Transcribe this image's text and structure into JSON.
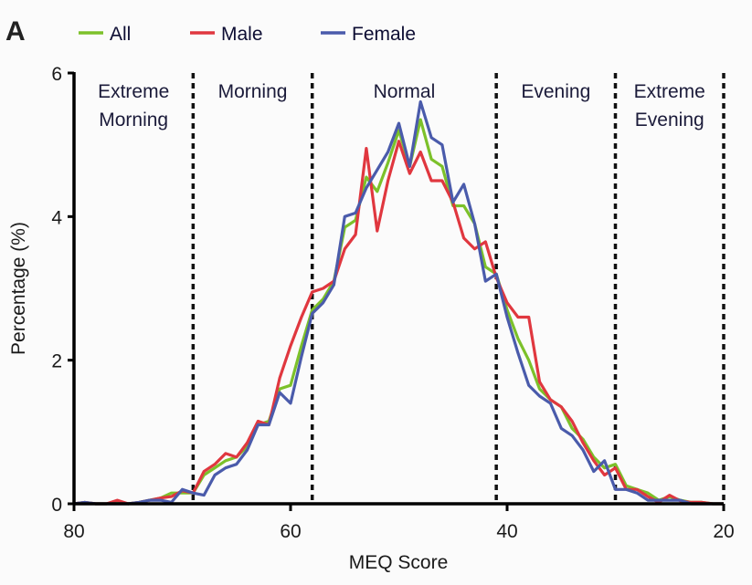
{
  "panel_label": "A",
  "chart_data": {
    "type": "line",
    "title": "",
    "xlabel": "MEQ Score",
    "ylabel": "Percentage (%)",
    "xlim": [
      80,
      20
    ],
    "ylim": [
      0,
      6
    ],
    "x_ticks": [
      80,
      60,
      40,
      20
    ],
    "y_ticks": [
      0,
      2,
      4,
      6
    ],
    "grid": false,
    "legend": {
      "placement": "top",
      "entries": [
        "All",
        "Male",
        "Female"
      ]
    },
    "dividers": [
      69,
      58,
      41,
      30,
      20
    ],
    "zones": [
      {
        "lines": [
          "Extreme",
          "Morning"
        ],
        "center": 74.5
      },
      {
        "lines": [
          "Morning"
        ],
        "center": 63.5
      },
      {
        "lines": [
          "Normal"
        ],
        "center": 49.5
      },
      {
        "lines": [
          "Evening"
        ],
        "center": 35.5
      },
      {
        "lines": [
          "Extreme",
          "Evening"
        ],
        "center": 25
      }
    ],
    "x": [
      80,
      79,
      78,
      77,
      76,
      75,
      74,
      73,
      72,
      71,
      70,
      69,
      68,
      67,
      66,
      65,
      64,
      63,
      62,
      61,
      60,
      59,
      58,
      57,
      56,
      55,
      54,
      53,
      52,
      51,
      50,
      49,
      48,
      47,
      46,
      45,
      44,
      43,
      42,
      41,
      40,
      39,
      38,
      37,
      36,
      35,
      34,
      33,
      32,
      31,
      30,
      29,
      28,
      27,
      26,
      25,
      24,
      23,
      22,
      21,
      20
    ],
    "series": [
      {
        "name": "All",
        "color": "#7cc12a",
        "values": [
          0,
          0.02,
          0,
          0,
          0.02,
          0,
          0.02,
          0.05,
          0.08,
          0.15,
          0.15,
          0.15,
          0.4,
          0.5,
          0.6,
          0.65,
          0.8,
          1.1,
          1.15,
          1.6,
          1.65,
          2.2,
          2.7,
          2.85,
          3.1,
          3.85,
          3.95,
          4.55,
          4.35,
          4.75,
          5.2,
          4.7,
          5.35,
          4.8,
          4.7,
          4.15,
          4.15,
          3.9,
          3.3,
          3.2,
          2.7,
          2.3,
          2.0,
          1.6,
          1.45,
          1.35,
          1.05,
          0.9,
          0.65,
          0.5,
          0.55,
          0.25,
          0.2,
          0.15,
          0.05,
          0.1,
          0.05,
          0.02,
          0.02,
          0,
          0
        ]
      },
      {
        "name": "Male",
        "color": "#e0373f",
        "values": [
          0,
          0.02,
          0,
          0,
          0.05,
          0,
          0.02,
          0.05,
          0.08,
          0.1,
          0.18,
          0.15,
          0.45,
          0.55,
          0.7,
          0.65,
          0.85,
          1.15,
          1.1,
          1.75,
          2.2,
          2.6,
          2.95,
          3.0,
          3.1,
          3.55,
          3.75,
          4.95,
          3.8,
          4.5,
          5.05,
          4.6,
          4.9,
          4.5,
          4.5,
          4.2,
          3.7,
          3.55,
          3.65,
          3.15,
          2.8,
          2.6,
          2.6,
          1.7,
          1.45,
          1.35,
          1.15,
          0.85,
          0.6,
          0.4,
          0.5,
          0.2,
          0.2,
          0.1,
          0.02,
          0.12,
          0.04,
          0.02,
          0.02,
          0,
          0
        ]
      },
      {
        "name": "Female",
        "color": "#4a5bab",
        "values": [
          0,
          0.02,
          0,
          0,
          0,
          0,
          0.02,
          0.05,
          0.05,
          0.02,
          0.2,
          0.15,
          0.12,
          0.4,
          0.5,
          0.55,
          0.75,
          1.1,
          1.1,
          1.55,
          1.4,
          2.05,
          2.65,
          2.8,
          3.05,
          4.0,
          4.05,
          4.4,
          4.65,
          4.9,
          5.3,
          4.7,
          5.6,
          5.1,
          5.0,
          4.2,
          4.45,
          3.9,
          3.1,
          3.2,
          2.6,
          2.1,
          1.65,
          1.5,
          1.4,
          1.05,
          0.95,
          0.75,
          0.45,
          0.6,
          0.2,
          0.2,
          0.15,
          0.05,
          0.05,
          0.05,
          0.05,
          0,
          0,
          0,
          0
        ]
      }
    ]
  }
}
